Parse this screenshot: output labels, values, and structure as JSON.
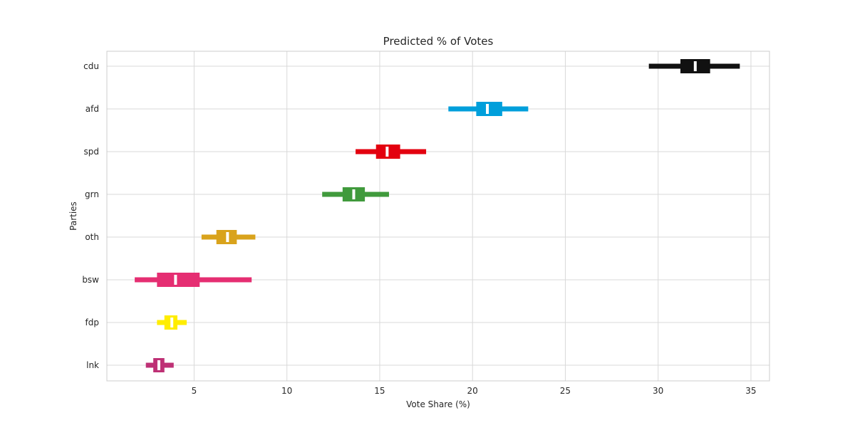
{
  "chart_data": {
    "type": "interval",
    "title": "Predicted % of Votes",
    "xlabel": "Vote Share (%)",
    "ylabel": "Parties",
    "xlim": [
      0.3,
      36.0
    ],
    "xticks": [
      5,
      10,
      15,
      20,
      25,
      30,
      35
    ],
    "grid": true,
    "categories": [
      "cdu",
      "afd",
      "spd",
      "grn",
      "oth",
      "bsw",
      "fdp",
      "lnk"
    ],
    "series": [
      {
        "party": "cdu",
        "color": "#111111",
        "low": 29.5,
        "q1": 31.2,
        "median": 32.0,
        "q3": 32.8,
        "high": 34.4
      },
      {
        "party": "afd",
        "color": "#009FDB",
        "low": 18.7,
        "q1": 20.2,
        "median": 20.8,
        "q3": 21.6,
        "high": 23.0
      },
      {
        "party": "spd",
        "color": "#E3000F",
        "low": 13.7,
        "q1": 14.8,
        "median": 15.4,
        "q3": 16.1,
        "high": 17.5
      },
      {
        "party": "grn",
        "color": "#409A3C",
        "low": 11.9,
        "q1": 13.0,
        "median": 13.6,
        "q3": 14.2,
        "high": 15.5
      },
      {
        "party": "oth",
        "color": "#D9A31C",
        "low": 5.4,
        "q1": 6.2,
        "median": 6.8,
        "q3": 7.3,
        "high": 8.3
      },
      {
        "party": "bsw",
        "color": "#E52E72",
        "low": 1.8,
        "q1": 3.0,
        "median": 4.0,
        "q3": 5.3,
        "high": 8.1
      },
      {
        "party": "fdp",
        "color": "#FFED00",
        "low": 3.0,
        "q1": 3.4,
        "median": 3.8,
        "q3": 4.1,
        "high": 4.6
      },
      {
        "party": "lnk",
        "color": "#BE3075",
        "low": 2.4,
        "q1": 2.8,
        "median": 3.1,
        "q3": 3.4,
        "high": 3.9
      }
    ]
  }
}
